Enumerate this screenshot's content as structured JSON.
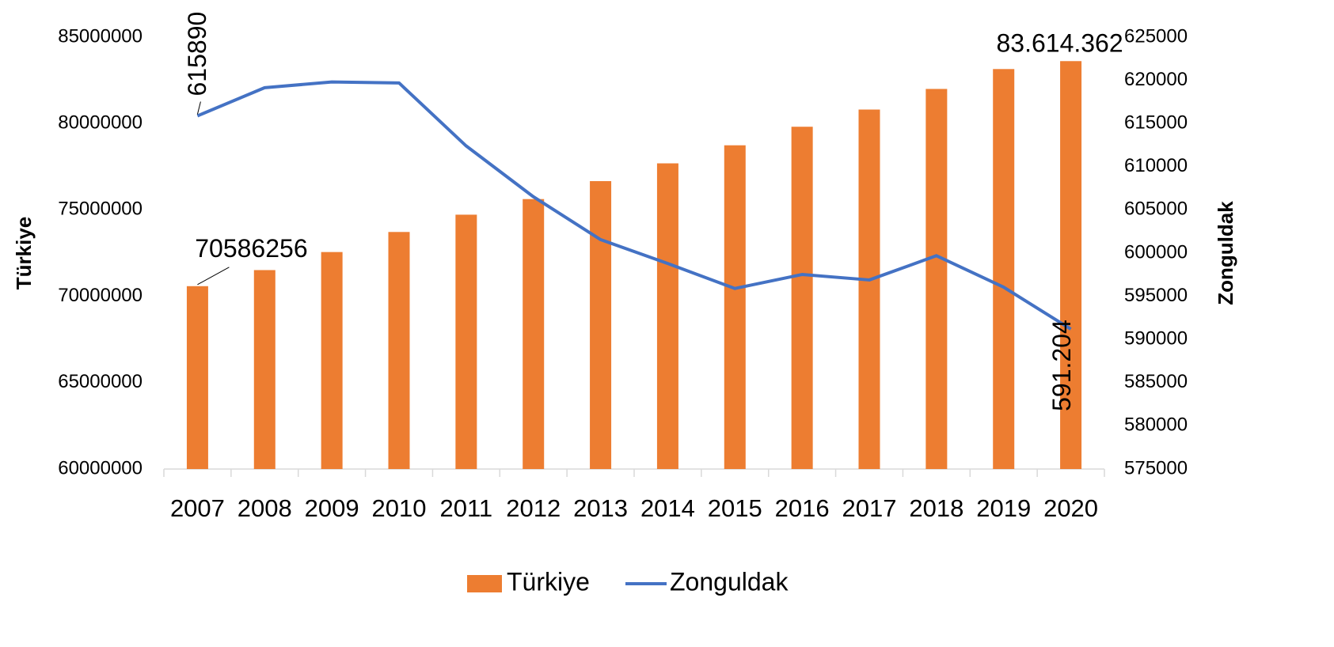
{
  "chart_data": {
    "type": "bar_line",
    "categories": [
      "2007",
      "2008",
      "2009",
      "2010",
      "2011",
      "2012",
      "2013",
      "2014",
      "2015",
      "2016",
      "2017",
      "2018",
      "2019",
      "2020"
    ],
    "series": [
      {
        "name": "Türkiye",
        "type": "bar",
        "axis": "y",
        "color": "#ed7d31",
        "values": [
          70586256,
          71517100,
          72561312,
          73722988,
          74724269,
          75627384,
          76667864,
          77695904,
          78741053,
          79814871,
          80810525,
          82003882,
          83154997,
          83614362
        ],
        "value_labels": [
          "70586256",
          null,
          null,
          null,
          null,
          null,
          null,
          null,
          null,
          null,
          null,
          null,
          null,
          "83.614.362"
        ]
      },
      {
        "name": "Zonguldak",
        "type": "line",
        "axis": "y2",
        "color": "#4472c4",
        "values": [
          615890,
          619151,
          619812,
          619703,
          612406,
          606527,
          601567,
          598796,
          595907,
          597524,
          596892,
          599698,
          596053,
          591204
        ],
        "value_labels": [
          "615890",
          null,
          null,
          null,
          null,
          null,
          null,
          null,
          null,
          null,
          null,
          null,
          null,
          "591.204"
        ]
      }
    ],
    "ylabel": "Türkiye",
    "y2label": "Zonguldak",
    "ylim": [
      60000000,
      85000000
    ],
    "yticks": [
      60000000,
      65000000,
      70000000,
      75000000,
      80000000,
      85000000
    ],
    "y2lim": [
      575000,
      625000
    ],
    "y2ticks": [
      575000,
      580000,
      585000,
      590000,
      595000,
      600000,
      605000,
      610000,
      615000,
      620000,
      625000
    ],
    "legend": "bottom",
    "grid": false
  }
}
